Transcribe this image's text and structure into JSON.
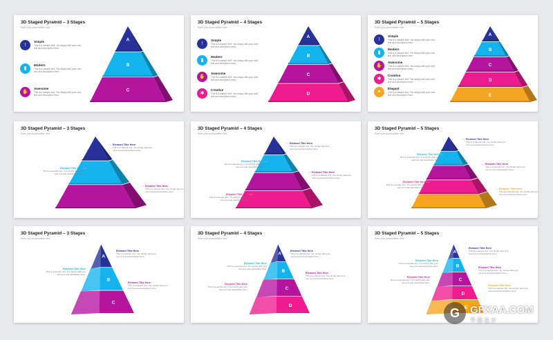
{
  "colors": {
    "navy": "#27319a",
    "cyan": "#13b4ee",
    "purple": "#b5149f",
    "magenta": "#ee1c8e",
    "orange": "#f6a522"
  },
  "sample_text": "This is a sample text. You simply add your own text and description here.",
  "slides": [
    {
      "title": "3D Staged Pyramid – 3 Stages",
      "subtitle": "Enter your subheadline here",
      "kind": "list",
      "stages": 3,
      "labels": [
        "A",
        "B",
        "C"
      ],
      "items": [
        {
          "name": "Simple",
          "icon": "warning-icon",
          "color": "#27319a"
        },
        {
          "name": "Modern",
          "icon": "chart-icon",
          "color": "#13b4ee"
        },
        {
          "name": "Awesome",
          "icon": "handshake-icon",
          "color": "#b5149f"
        }
      ]
    },
    {
      "title": "3D Staged Pyramid – 4 Stages",
      "subtitle": "Enter your subheadline here",
      "kind": "list",
      "stages": 4,
      "labels": [
        "A",
        "B",
        "C",
        "D"
      ],
      "items": [
        {
          "name": "Simple",
          "icon": "warning-icon",
          "color": "#27319a"
        },
        {
          "name": "Modern",
          "icon": "chart-icon",
          "color": "#13b4ee"
        },
        {
          "name": "Awesome",
          "icon": "handshake-icon",
          "color": "#b5149f"
        },
        {
          "name": "Creative",
          "icon": "gear-icon",
          "color": "#ee1c8e"
        }
      ]
    },
    {
      "title": "3D Staged Pyramid – 5 Stages",
      "subtitle": "Enter your subheadline here",
      "kind": "list",
      "stages": 5,
      "labels": [
        "A",
        "B",
        "C",
        "D",
        "E"
      ],
      "items": [
        {
          "name": "Simple",
          "icon": "warning-icon",
          "color": "#27319a"
        },
        {
          "name": "Modern",
          "icon": "chart-icon",
          "color": "#13b4ee"
        },
        {
          "name": "Awesome",
          "icon": "handshake-icon",
          "color": "#b5149f"
        },
        {
          "name": "Creative",
          "icon": "gear-icon",
          "color": "#ee1c8e"
        },
        {
          "name": "Elegant",
          "icon": "lightbulb-icon",
          "color": "#f6a522"
        }
      ]
    },
    {
      "title": "3D Staged Pyramid – 3 Stages",
      "subtitle": "Enter your subheadline here",
      "kind": "callout",
      "stages": 3,
      "element_title": "Element Title Here"
    },
    {
      "title": "3D Staged Pyramid – 4 Stages",
      "subtitle": "Enter your subheadline here",
      "kind": "callout",
      "stages": 4,
      "element_title": "Element Title Here"
    },
    {
      "title": "3D Staged Pyramid – 5 Stages",
      "subtitle": "Enter your subheadline here",
      "kind": "callout",
      "stages": 5,
      "element_title": "Element Title Here"
    },
    {
      "title": "3D Staged Pyramid – 3 Stages",
      "subtitle": "Enter your subheadline here",
      "kind": "front",
      "stages": 3,
      "element_title": "Element Title Here",
      "labels": [
        "A",
        "B",
        "C"
      ]
    },
    {
      "title": "3D Staged Pyramid – 4 Stages",
      "subtitle": "Enter your subheadline here",
      "kind": "front",
      "stages": 4,
      "element_title": "Element Title Here",
      "labels": [
        "A",
        "B",
        "C",
        "D"
      ]
    },
    {
      "title": "3D Staged Pyramid – 5 Stages",
      "subtitle": "Enter your subheadline here",
      "kind": "front",
      "stages": 5,
      "element_title": "Element Title Here",
      "labels": [
        "A",
        "B",
        "C",
        "D",
        "E"
      ]
    }
  ],
  "watermark": {
    "logo": "G",
    "text": "GFXAA.COM",
    "sub": "平面设计"
  }
}
